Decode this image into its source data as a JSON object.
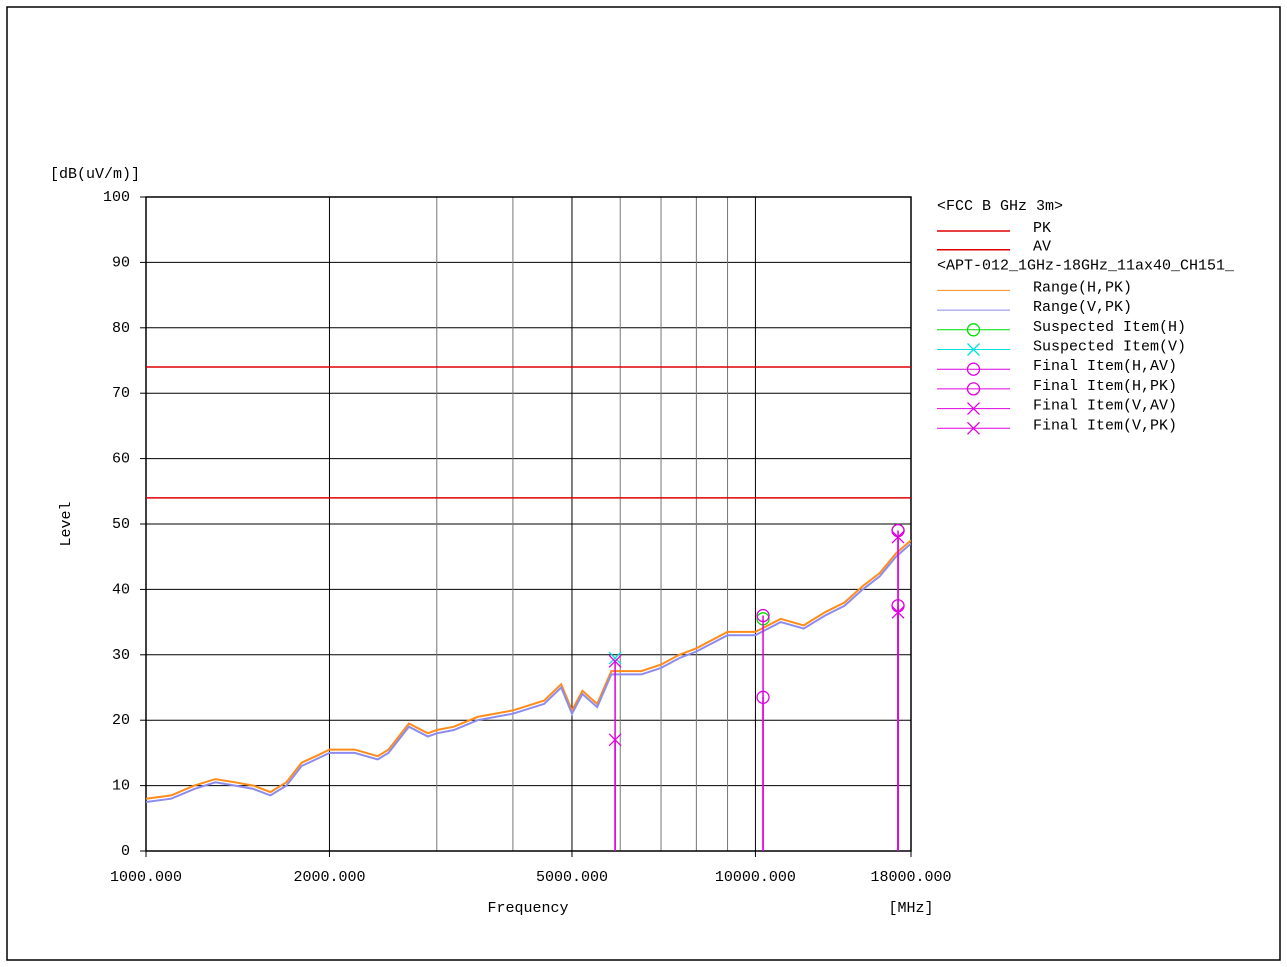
{
  "chart_data": {
    "type": "line",
    "y_unit": "[dB(uV/m)]",
    "ylabel": "Level",
    "xlabel": "Frequency",
    "x_unit": "[MHz]",
    "log_x": true,
    "grid": true,
    "xlim": [
      1000,
      18000
    ],
    "ylim": [
      0,
      100
    ],
    "xticks": [
      {
        "value": 1000,
        "label": "1000.000"
      },
      {
        "value": 2000,
        "label": "2000.000"
      },
      {
        "value": 5000,
        "label": "5000.000"
      },
      {
        "value": 10000,
        "label": "10000.000"
      },
      {
        "value": 18000,
        "label": "18000.000"
      }
    ],
    "xminor": [
      3000,
      4000,
      6000,
      7000,
      8000,
      9000
    ],
    "yticks": [
      0,
      10,
      20,
      30,
      40,
      50,
      60,
      70,
      80,
      90,
      100
    ],
    "limit_group": "<FCC B GHz 3m>",
    "limits": [
      {
        "name": "PK",
        "color": "#e00000",
        "value": 74
      },
      {
        "name": "AV",
        "color": "#e00000",
        "value": 54
      }
    ],
    "series_group": "<APT-012_1GHz-18GHz_11ax40_CH151_",
    "series": [
      {
        "name": "Range(H,PK)",
        "color": "#ff8c1a",
        "style": "line",
        "x": [
          1000,
          1100,
          1200,
          1300,
          1400,
          1500,
          1600,
          1700,
          1800,
          1900,
          2000,
          2200,
          2400,
          2500,
          2700,
          2900,
          3000,
          3200,
          3500,
          4000,
          4500,
          4800,
          5000,
          5200,
          5500,
          5800,
          6000,
          6500,
          7000,
          7500,
          8000,
          9000,
          10000,
          11000,
          12000,
          13000,
          14000,
          15000,
          16000,
          17000,
          18000
        ],
        "values": [
          8,
          8.5,
          10,
          11,
          10.5,
          10,
          9,
          10.5,
          13.5,
          14.5,
          15.5,
          15.5,
          14.5,
          15.5,
          19.5,
          18,
          18.5,
          19,
          20.5,
          21.5,
          23,
          25.5,
          21.5,
          24.5,
          22.5,
          27.5,
          27.5,
          27.5,
          28.5,
          30,
          31,
          33.5,
          33.5,
          35.5,
          34.5,
          36.5,
          38,
          40.5,
          42.5,
          45.5,
          47.5
        ]
      },
      {
        "name": "Range(V,PK)",
        "color": "#8c8cf0",
        "style": "line",
        "x": [
          1000,
          1100,
          1200,
          1300,
          1400,
          1500,
          1600,
          1700,
          1800,
          1900,
          2000,
          2200,
          2400,
          2500,
          2700,
          2900,
          3000,
          3200,
          3500,
          4000,
          4500,
          4800,
          5000,
          5200,
          5500,
          5800,
          6000,
          6500,
          7000,
          7500,
          8000,
          9000,
          10000,
          11000,
          12000,
          13000,
          14000,
          15000,
          16000,
          17000,
          18000
        ],
        "values": [
          7.5,
          8,
          9.5,
          10.5,
          10,
          9.5,
          8.5,
          10,
          13,
          14,
          15,
          15,
          14,
          15,
          19,
          17.5,
          18,
          18.5,
          20,
          21,
          22.5,
          25,
          21,
          24,
          22,
          27,
          27,
          27,
          28,
          29.5,
          30.5,
          33,
          33,
          35,
          34,
          36,
          37.5,
          40,
          42,
          45,
          47
        ]
      },
      {
        "name": "Suspected Item(H)",
        "color": "#00dd00",
        "style": "marker",
        "marker": "circle",
        "x": [
          10292,
          17140
        ],
        "values": [
          35.5,
          49
        ]
      },
      {
        "name": "Suspected Item(V)",
        "color": "#00e0e0",
        "style": "marker",
        "marker": "cross",
        "x": [
          5885
        ],
        "values": [
          29.5
        ]
      },
      {
        "name": "Final Item(H,AV)",
        "color": "#e000e0",
        "style": "marker",
        "marker": "circle",
        "stem": true,
        "x": [
          10292,
          17140
        ],
        "values": [
          23.5,
          37.5
        ]
      },
      {
        "name": "Final Item(H,PK)",
        "color": "#e000e0",
        "style": "marker",
        "marker": "circle",
        "stem": true,
        "x": [
          10292,
          17140
        ],
        "values": [
          36,
          49
        ]
      },
      {
        "name": "Final Item(V,AV)",
        "color": "#e000e0",
        "style": "marker",
        "marker": "cross",
        "stem": true,
        "x": [
          5885,
          17140
        ],
        "values": [
          17,
          36.5
        ]
      },
      {
        "name": "Final Item(V,PK)",
        "color": "#e000e0",
        "style": "marker",
        "marker": "cross",
        "stem": true,
        "x": [
          5885,
          17140
        ],
        "values": [
          29,
          48
        ]
      }
    ]
  }
}
